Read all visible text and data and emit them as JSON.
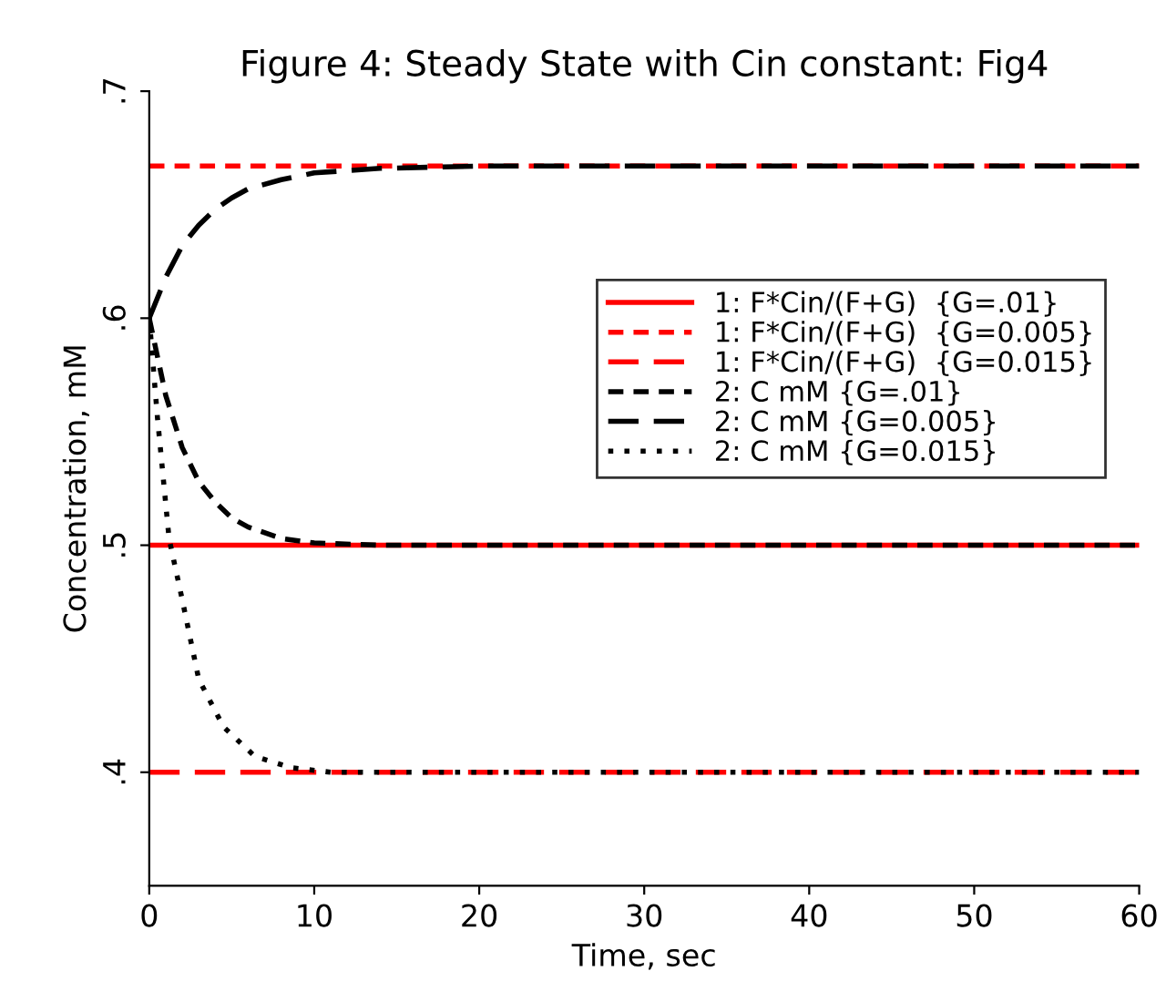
{
  "chart_data": {
    "type": "line",
    "title": "Figure 4: Steady State with Cin constant: Fig4",
    "xlabel": "Time, sec",
    "ylabel": "Concentration, mM",
    "xlim": [
      0,
      60
    ],
    "xticks": [
      0,
      10,
      20,
      30,
      40,
      50,
      60
    ],
    "ylim": [
      0.35,
      0.7
    ],
    "yticks": [
      {
        "value": 0.4,
        "label": ".4"
      },
      {
        "value": 0.5,
        "label": ".5"
      },
      {
        "value": 0.6,
        "label": ".6"
      },
      {
        "value": 0.7,
        "label": ".7"
      }
    ],
    "grid": false,
    "legend": "top right",
    "marker": "none",
    "series": [
      {
        "name": "1: F*Cin/(F+G)  {G=.01}",
        "color": "#ff0000",
        "line_style": "solid",
        "x": [
          0,
          60
        ],
        "values": [
          0.5,
          0.5
        ]
      },
      {
        "name": "1: F*Cin/(F+G)  {G=0.005}",
        "color": "#ff0000",
        "line_style": "dashed",
        "x": [
          0,
          60
        ],
        "values": [
          0.667,
          0.667
        ]
      },
      {
        "name": "1: F*Cin/(F+G)  {G=0.015}",
        "color": "#ff0000",
        "line_style": "long dashed",
        "x": [
          0,
          60
        ],
        "values": [
          0.4,
          0.4
        ]
      },
      {
        "name": "2: C mM {G=.01}",
        "color": "#000000",
        "line_style": "dashed",
        "x": [
          0,
          1,
          2,
          3,
          4,
          5,
          6,
          8,
          10,
          14,
          60
        ],
        "values": [
          0.6,
          0.566,
          0.543,
          0.528,
          0.519,
          0.512,
          0.508,
          0.503,
          0.501,
          0.5,
          0.5
        ]
      },
      {
        "name": "2: C mM {G=0.005}",
        "color": "#000000",
        "line_style": "long dashed",
        "x": [
          0,
          1,
          2,
          3,
          4,
          5,
          6,
          8,
          10,
          14,
          20,
          60
        ],
        "values": [
          0.6,
          0.618,
          0.632,
          0.641,
          0.648,
          0.653,
          0.657,
          0.661,
          0.664,
          0.666,
          0.667,
          0.667
        ]
      },
      {
        "name": "2: C mM {G=0.015}",
        "color": "#000000",
        "line_style": "dotted",
        "x": [
          0,
          0.5,
          1.2,
          2,
          3,
          4.5,
          6.4,
          8.6,
          11,
          60
        ],
        "values": [
          0.6,
          0.556,
          0.503,
          0.476,
          0.441,
          0.42,
          0.407,
          0.402,
          0.4,
          0.4
        ]
      }
    ]
  }
}
